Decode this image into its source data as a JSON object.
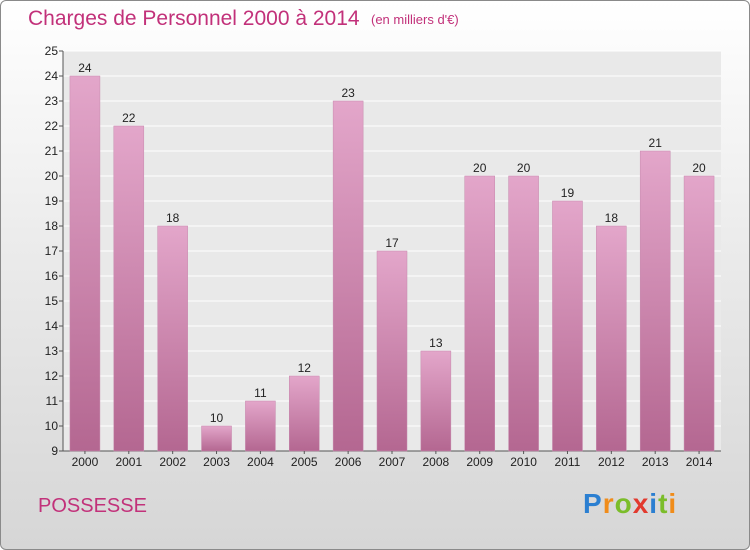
{
  "header": {
    "title": "Charges de Personnel 2000 à 2014",
    "subtitle": "(en milliers d'€)"
  },
  "footer": {
    "commune": "POSSESSE",
    "logo_text": "Proxiti"
  },
  "colors": {
    "title": "#c2317a",
    "bar_light": "#e3a6ca",
    "bar_dark": "#b46791",
    "logo": [
      "#2b7fd1",
      "#f08c1a",
      "#7bbd2a",
      "#e23a2e",
      "#2b7fd1",
      "#7bbd2a",
      "#f08c1a"
    ]
  },
  "chart_data": {
    "type": "bar",
    "title": "Charges de Personnel 2000 à 2014",
    "subtitle": "(en milliers d'€)",
    "categories": [
      "2000",
      "2001",
      "2002",
      "2003",
      "2004",
      "2005",
      "2006",
      "2007",
      "2008",
      "2009",
      "2010",
      "2011",
      "2012",
      "2013",
      "2014"
    ],
    "values": [
      24,
      22,
      18,
      10,
      11,
      12,
      23,
      17,
      13,
      20,
      20,
      19,
      18,
      21,
      20
    ],
    "data_labels": [
      "24",
      "22",
      "18",
      "10",
      "11",
      "12",
      "23",
      "17",
      "13",
      "20",
      "20",
      "19",
      "18",
      "21",
      "20"
    ],
    "ylim": [
      9,
      25
    ],
    "yticks": [
      9,
      10,
      11,
      12,
      13,
      14,
      15,
      16,
      17,
      18,
      19,
      20,
      21,
      22,
      23,
      24,
      25
    ],
    "grid": true,
    "legend": "none"
  }
}
